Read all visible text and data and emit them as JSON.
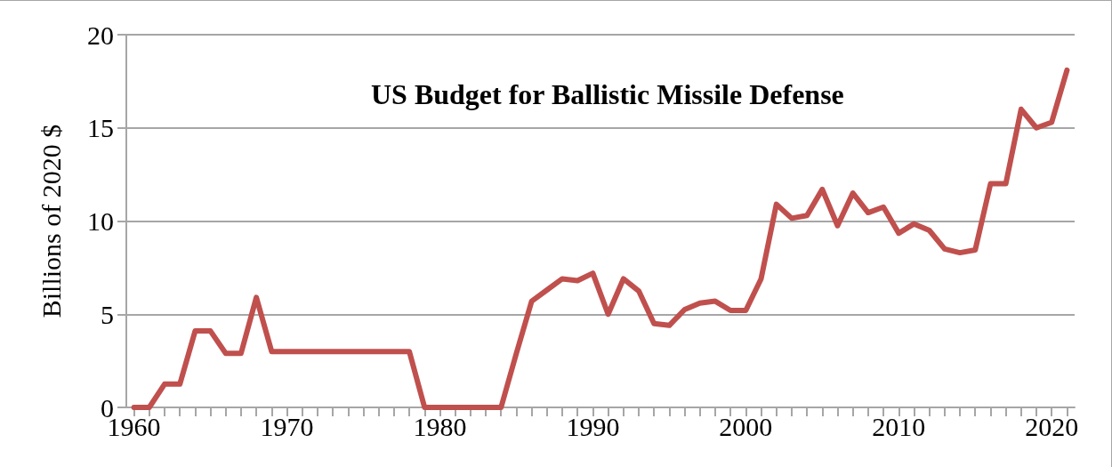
{
  "chart_data": {
    "type": "line",
    "title": "US Budget for Ballistic Missile Defense",
    "ylabel": "Billions of 2020 $",
    "x": [
      1960,
      1961,
      1962,
      1963,
      1964,
      1965,
      1966,
      1967,
      1968,
      1969,
      1970,
      1971,
      1972,
      1973,
      1974,
      1975,
      1976,
      1977,
      1978,
      1979,
      1980,
      1981,
      1982,
      1983,
      1984,
      1985,
      1986,
      1987,
      1988,
      1989,
      1990,
      1991,
      1992,
      1993,
      1994,
      1995,
      1996,
      1997,
      1998,
      1999,
      2000,
      2001,
      2002,
      2003,
      2004,
      2005,
      2006,
      2007,
      2008,
      2009,
      2010,
      2011,
      2012,
      2013,
      2014,
      2015,
      2016,
      2017,
      2018,
      2019,
      2020,
      2021
    ],
    "series": [
      {
        "color": "#c0504d",
        "values": [
          0,
          0,
          1.25,
          1.25,
          4.1,
          4.1,
          2.9,
          2.9,
          5.9,
          3,
          3,
          3,
          3,
          3,
          3,
          3,
          3,
          3,
          3,
          0,
          0,
          0,
          0,
          0,
          0,
          2.9,
          5.7,
          6.3,
          6.9,
          6.8,
          7.2,
          5,
          6.9,
          6.25,
          4.5,
          4.4,
          5.25,
          5.6,
          5.7,
          5.2,
          5.2,
          6.9,
          10.9,
          10.15,
          10.3,
          11.7,
          9.75,
          11.5,
          10.45,
          10.75,
          9.35,
          9.85,
          9.5,
          8.5,
          8.3,
          8.45,
          12,
          12,
          16,
          15,
          15.3,
          18.1
        ]
      }
    ],
    "xlim": [
      1959.5,
      2021.5
    ],
    "xticks": [
      1960,
      {
        "value": 1961,
        "label": null
      },
      {
        "value": 1962,
        "label": null
      },
      {
        "value": 1963,
        "label": null
      },
      {
        "value": 1964,
        "label": null
      },
      {
        "value": 1965,
        "label": null
      },
      {
        "value": 1966,
        "label": null
      },
      {
        "value": 1967,
        "label": null
      },
      {
        "value": 1968,
        "label": null
      },
      {
        "value": 1969,
        "label": null
      },
      1970,
      {
        "value": 1971,
        "label": null
      },
      {
        "value": 1972,
        "label": null
      },
      {
        "value": 1973,
        "label": null
      },
      {
        "value": 1974,
        "label": null
      },
      {
        "value": 1975,
        "label": null
      },
      {
        "value": 1976,
        "label": null
      },
      {
        "value": 1977,
        "label": null
      },
      {
        "value": 1978,
        "label": null
      },
      {
        "value": 1979,
        "label": null
      },
      1980,
      {
        "value": 1981,
        "label": null
      },
      {
        "value": 1982,
        "label": null
      },
      {
        "value": 1983,
        "label": null
      },
      {
        "value": 1984,
        "label": null
      },
      {
        "value": 1985,
        "label": null
      },
      {
        "value": 1986,
        "label": null
      },
      {
        "value": 1987,
        "label": null
      },
      {
        "value": 1988,
        "label": null
      },
      {
        "value": 1989,
        "label": null
      },
      1990,
      {
        "value": 1991,
        "label": null
      },
      {
        "value": 1992,
        "label": null
      },
      {
        "value": 1993,
        "label": null
      },
      {
        "value": 1994,
        "label": null
      },
      {
        "value": 1995,
        "label": null
      },
      {
        "value": 1996,
        "label": null
      },
      {
        "value": 1997,
        "label": null
      },
      {
        "value": 1998,
        "label": null
      },
      {
        "value": 1999,
        "label": null
      },
      2000,
      {
        "value": 2001,
        "label": null
      },
      {
        "value": 2002,
        "label": null
      },
      {
        "value": 2003,
        "label": null
      },
      {
        "value": 2004,
        "label": null
      },
      {
        "value": 2005,
        "label": null
      },
      {
        "value": 2006,
        "label": null
      },
      {
        "value": 2007,
        "label": null
      },
      {
        "value": 2008,
        "label": null
      },
      {
        "value": 2009,
        "label": null
      },
      2010,
      {
        "value": 2011,
        "label": null
      },
      {
        "value": 2012,
        "label": null
      },
      {
        "value": 2013,
        "label": null
      },
      {
        "value": 2014,
        "label": null
      },
      {
        "value": 2015,
        "label": null
      },
      {
        "value": 2016,
        "label": null
      },
      {
        "value": 2017,
        "label": null
      },
      {
        "value": 2018,
        "label": null
      },
      {
        "value": 2019,
        "label": null
      },
      2020,
      {
        "value": 2021,
        "label": null
      }
    ],
    "ylim": [
      0,
      20
    ],
    "yticks": [
      0,
      5,
      10,
      15,
      20
    ],
    "grid": "y",
    "marker": "none",
    "line_style": "solid"
  }
}
